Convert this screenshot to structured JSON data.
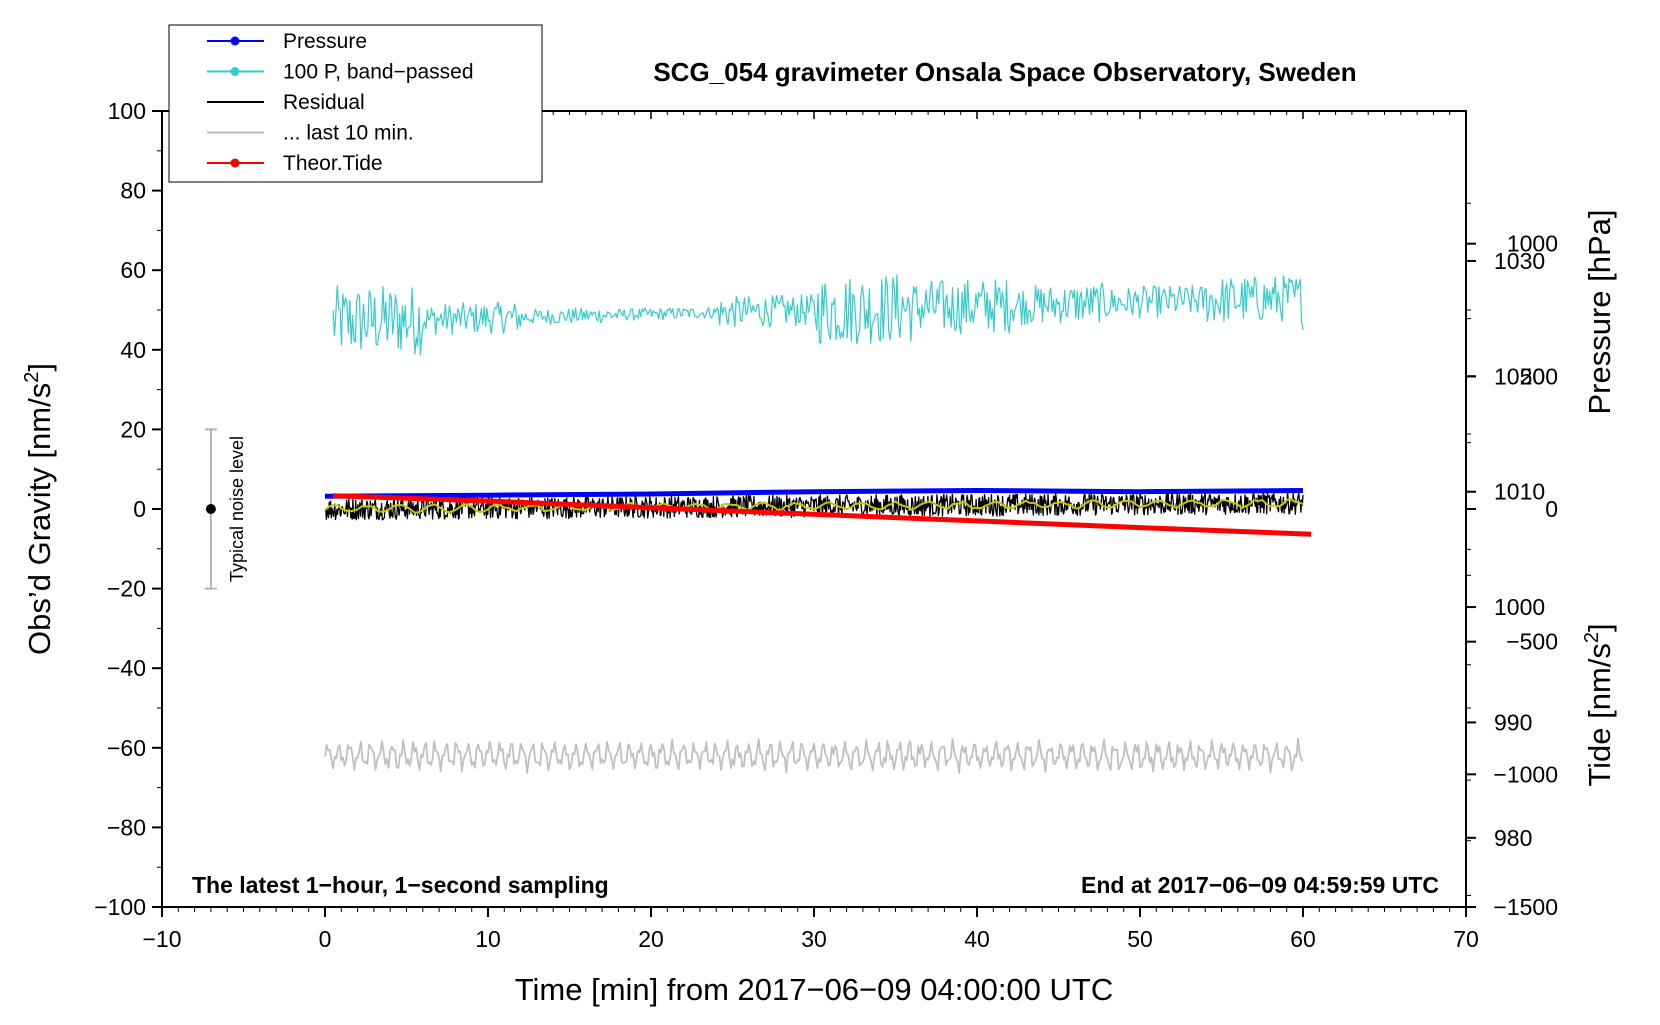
{
  "chart_data": {
    "type": "line",
    "title": "SCG_054 gravimeter Onsala Space Observatory, Sweden",
    "xlabel": "Time [min] from 2017−06−09 04:00:00 UTC",
    "ylabel": "Obs’d Gravity [nm/s",
    "ylabel_sup": "2",
    "ylabel_end": "]",
    "xlim": [
      -10,
      70
    ],
    "ylim": [
      -100,
      100
    ],
    "x_ticks": [
      -10,
      0,
      10,
      20,
      30,
      40,
      50,
      60,
      70
    ],
    "x_tick_labels": [
      "−10",
      "0",
      "10",
      "20",
      "30",
      "40",
      "50",
      "60",
      "70"
    ],
    "y_ticks": [
      -100,
      -80,
      -60,
      -40,
      -20,
      0,
      20,
      40,
      60,
      80,
      100
    ],
    "y_tick_labels": [
      "−100",
      "−80",
      "−60",
      "−40",
      "−20",
      "0",
      "20",
      "40",
      "60",
      "80",
      "100"
    ],
    "pressure_axis": {
      "label": "Pressure [hPa]",
      "ylim": [
        974,
        1043
      ],
      "ticks": [
        980,
        990,
        1000,
        1010,
        1020,
        1030
      ],
      "tick_labels": [
        "980",
        "990",
        "1000",
        "1010",
        "1020",
        "1030"
      ]
    },
    "tide_axis": {
      "label": "Tide [nm/s",
      "label_sup": "2",
      "label_end": "]",
      "ylim": [
        -1500,
        1500
      ],
      "ticks": [
        -1500,
        -1000,
        -500,
        0,
        500,
        1000
      ],
      "tick_labels": [
        "−1500",
        "−1000",
        "−500",
        "0",
        "500",
        "1000"
      ]
    },
    "bottom_left_note": "The latest 1−hour, 1−second sampling",
    "bottom_right_note": "End at 2017−06−09 04:59:59 UTC",
    "noise_bar": {
      "label": "Typical noise level",
      "x": -7,
      "center": 0,
      "half_range": 20
    },
    "legend": [
      {
        "label": "Pressure",
        "color": "#0000ff",
        "marker": true
      },
      {
        "label": "100 P, band−passed",
        "color": "#33cccc",
        "marker": true
      },
      {
        "label": "Residual",
        "color": "#000000",
        "marker": false
      },
      {
        "label": "... last 10 min.",
        "color": "#c0c0c0",
        "marker": false
      },
      {
        "label": "Theor.Tide",
        "color": "#ff0000",
        "marker": true
      }
    ],
    "series": [
      {
        "name": "Pressure",
        "axis": "pressure",
        "color": "#0000ff",
        "x": [
          0,
          10,
          20,
          30,
          40,
          50,
          60
        ],
        "y": [
          1009.6,
          1009.7,
          1009.8,
          1010.0,
          1010.1,
          1010.0,
          1010.1
        ]
      },
      {
        "name": "100 P, band−passed",
        "axis": "gravity",
        "color": "#33cccc",
        "x_range": [
          0.5,
          60
        ],
        "baseline": 47,
        "trend_end": 53,
        "amplitude": [
          9,
          4,
          2,
          1.5,
          4,
          9,
          7,
          5,
          4,
          6,
          8
        ]
      },
      {
        "name": "Residual",
        "axis": "gravity",
        "color": "#000000",
        "x_range": [
          0,
          60
        ],
        "baseline": 0,
        "trend_end": 1.5,
        "amplitude": 2.8
      },
      {
        "name": "Residual smoothed",
        "axis": "gravity",
        "color": "#c8c800",
        "x_range": [
          0,
          60
        ],
        "baseline": 0,
        "trend_end": 1.5,
        "amplitude": 0.8
      },
      {
        "name": "... last 10 min.",
        "axis": "gravity",
        "color": "#c0c0c0",
        "x_range": [
          0,
          60
        ],
        "baseline": -62,
        "amplitude": 2.5
      },
      {
        "name": "Theor.Tide",
        "axis": "tide",
        "color": "#ff0000",
        "x": [
          0.5,
          10,
          20,
          30,
          40,
          50,
          60.5
        ],
        "y": [
          50,
          30,
          5,
          -20,
          -45,
          -70,
          -95
        ]
      }
    ],
    "colors": {
      "pressure": "#0000ff",
      "bandpass": "#33cccc",
      "residual": "#000000",
      "smooth": "#c8c800",
      "last10": "#c0c0c0",
      "tide": "#ff0000",
      "noise_bar": "#b4b4b4"
    }
  }
}
